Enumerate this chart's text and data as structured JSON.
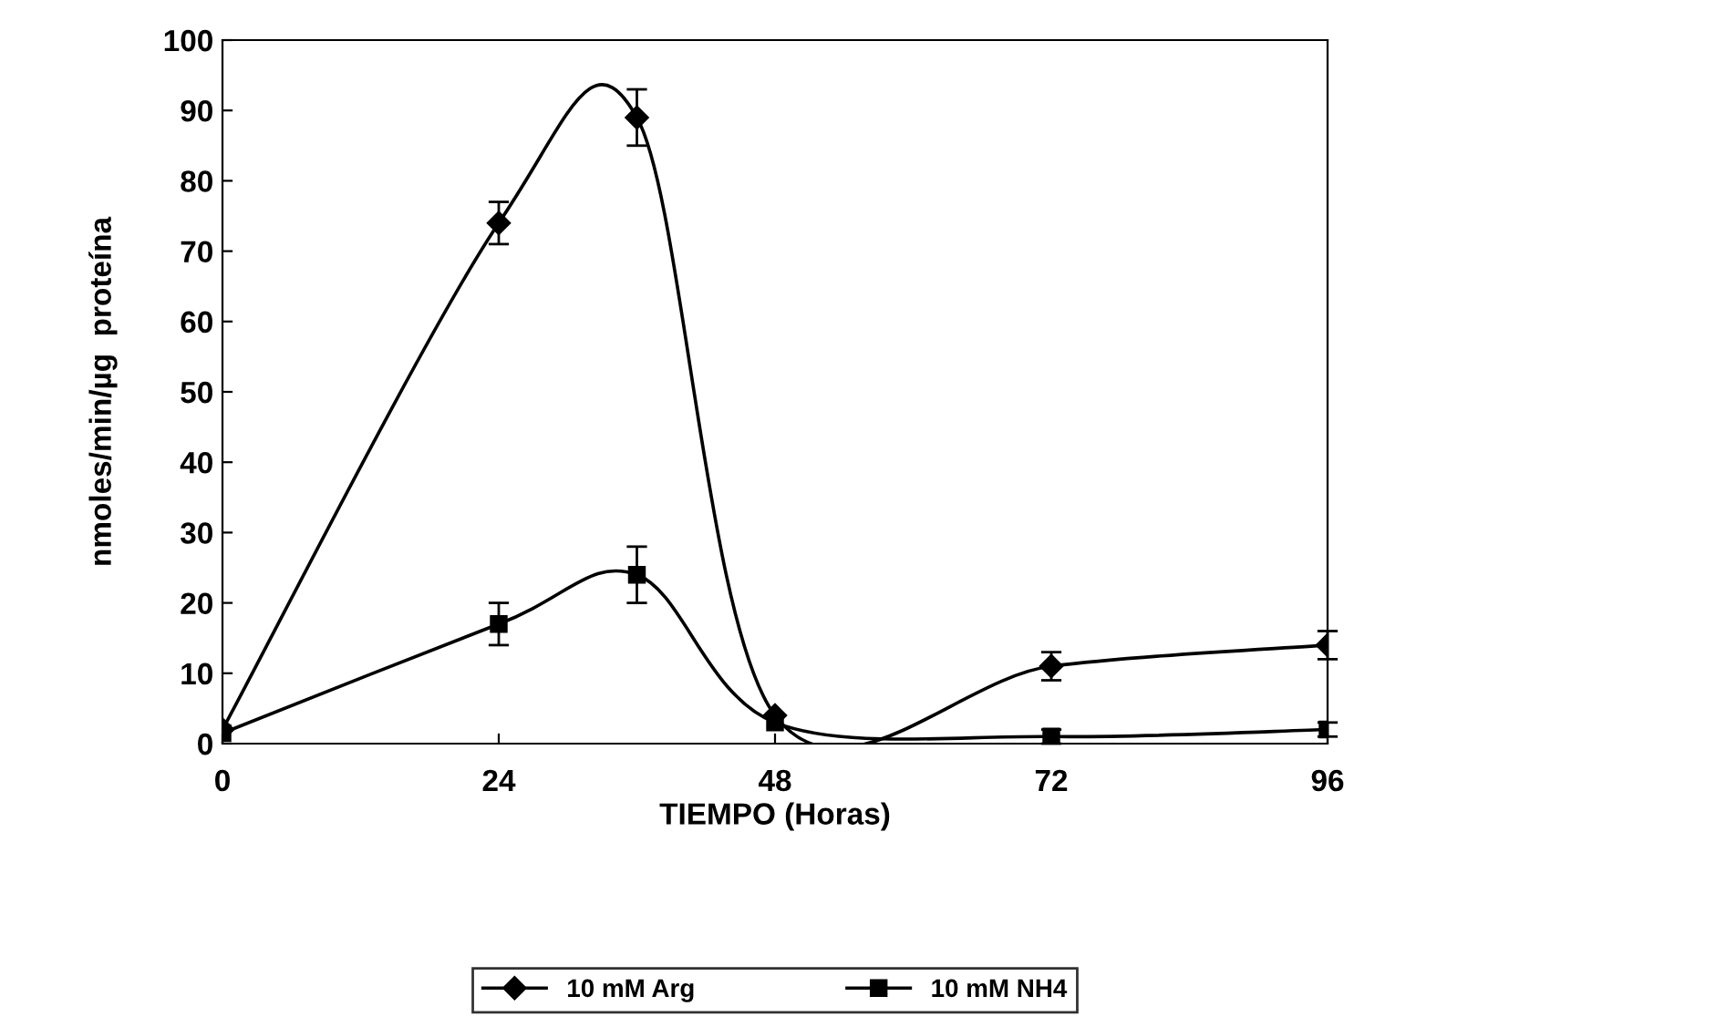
{
  "chart_data": {
    "type": "line",
    "xlabel": "TIEMPO (Horas)",
    "ylabel": "nmoles/min/µg  proteína",
    "x": [
      0,
      24,
      36,
      48,
      72,
      96
    ],
    "series": [
      {
        "name": "10 mM Arg",
        "color": "#000000",
        "marker": "diamond",
        "values": [
          2,
          74,
          89,
          4,
          11,
          14
        ],
        "errors": [
          null,
          3,
          4,
          null,
          2,
          2
        ]
      },
      {
        "name": "10 mM NH4",
        "color": "#000000",
        "marker": "square",
        "values": [
          1.5,
          17,
          24,
          3,
          1,
          2
        ],
        "errors": [
          null,
          3,
          4,
          null,
          [
            0,
            2
          ],
          [
            1,
            3
          ]
        ]
      }
    ],
    "xlim": [
      0,
      96
    ],
    "xticks": [
      0,
      24,
      48,
      72,
      96
    ],
    "ylim": [
      0,
      100
    ],
    "yticks": [
      0,
      10,
      20,
      30,
      40,
      50,
      60,
      70,
      80,
      90,
      100
    ],
    "grid": false,
    "legend": "bottom",
    "line_style": "solid"
  }
}
